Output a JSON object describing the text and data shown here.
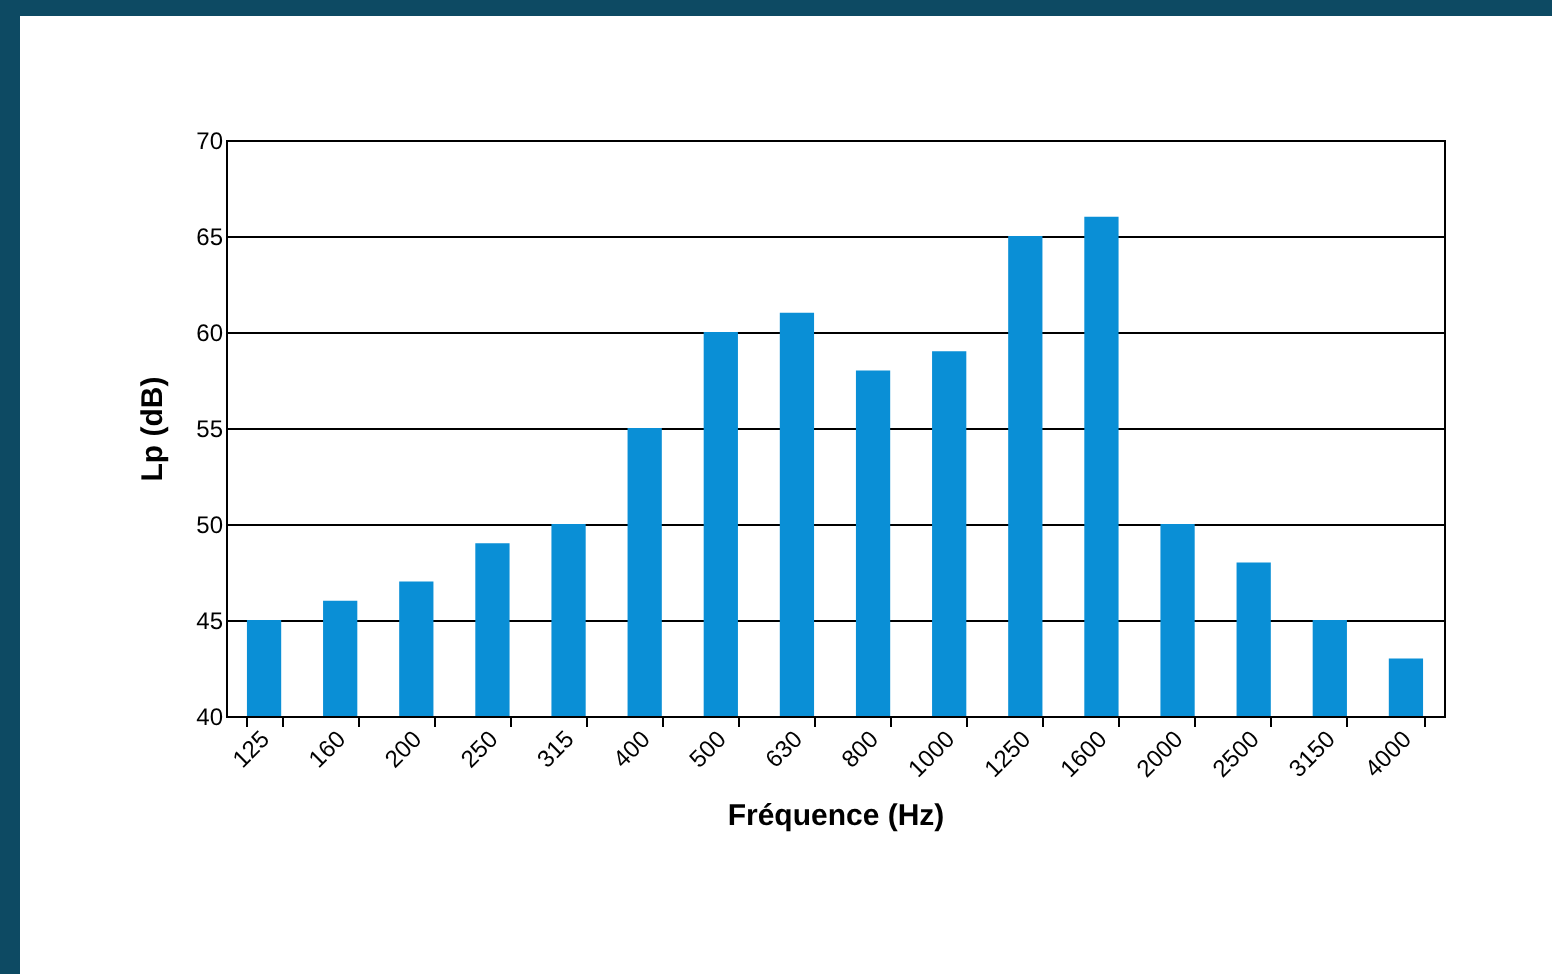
{
  "chart_data": {
    "type": "bar",
    "xlabel": "Fréquence (Hz)",
    "ylabel": "Lp (dB)",
    "categories": [
      "125",
      "160",
      "200",
      "250",
      "315",
      "400",
      "500",
      "630",
      "800",
      "1000",
      "1250",
      "1600",
      "2000",
      "2500",
      "3150",
      "4000"
    ],
    "values": [
      45,
      46,
      47,
      49,
      50,
      55,
      60,
      61,
      58,
      59,
      65,
      66,
      50,
      48,
      45,
      43
    ],
    "color": "#0a8fd6",
    "ylim": [
      40,
      70
    ],
    "yticks": [
      40,
      45,
      50,
      55,
      60,
      65,
      70
    ],
    "grid": "y"
  }
}
